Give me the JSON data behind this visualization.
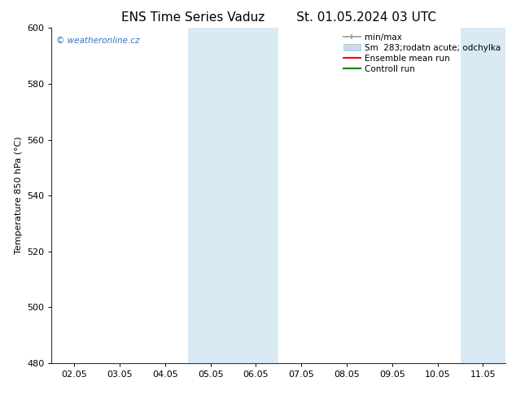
{
  "title": "ENS Time Series Vaduz        St. 01.05.2024 03 UTC",
  "ylabel": "Temperature 850 hPa (°C)",
  "ylim": [
    480,
    600
  ],
  "yticks": [
    480,
    500,
    520,
    540,
    560,
    580,
    600
  ],
  "xtick_labels": [
    "02.05",
    "03.05",
    "04.05",
    "05.05",
    "06.05",
    "07.05",
    "08.05",
    "09.05",
    "10.05",
    "11.05"
  ],
  "x_values": [
    0,
    1,
    2,
    3,
    4,
    5,
    6,
    7,
    8,
    9
  ],
  "xlim": [
    -0.5,
    9.5
  ],
  "background_color": "#ffffff",
  "plot_bg_color": "#ffffff",
  "shaded_regions": [
    {
      "xstart": 2.5,
      "xend": 4.5,
      "color": "#daeaf5"
    },
    {
      "xstart": 8.5,
      "xend": 9.5,
      "color": "#daeaf5"
    }
  ],
  "watermark_text": "© weatheronline.cz",
  "watermark_color": "#3377bb",
  "minmax_color": "#999999",
  "sm_color": "#c8dce8",
  "ensemble_color": "#ff0000",
  "control_color": "#008000",
  "title_fontsize": 11,
  "axis_fontsize": 8,
  "tick_fontsize": 8,
  "legend_fontsize": 7.5
}
